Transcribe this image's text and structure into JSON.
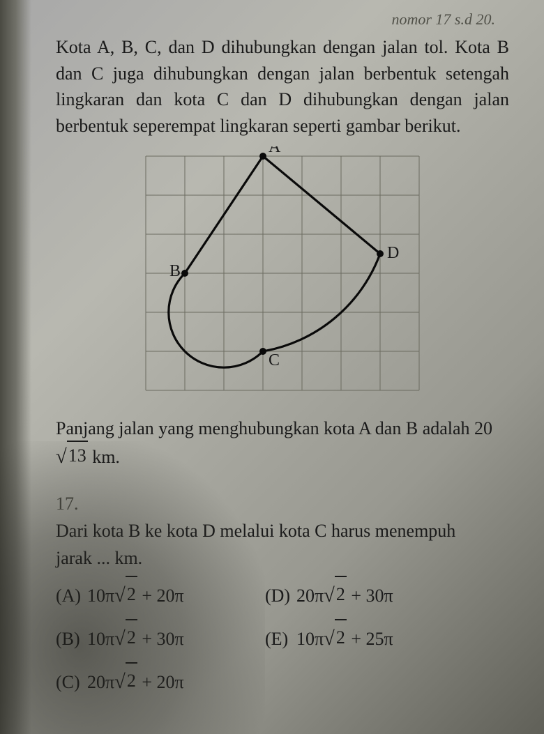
{
  "header": {
    "note": "nomor 17 s.d 20."
  },
  "problem": {
    "intro": "Kota A, B, C, dan D dihubungkan dengan jalan tol. Kota B dan C juga dihubungkan dengan jalan berbentuk setengah lingkaran dan kota C dan D dihubungkan dengan jalan berbentuk seperempat lingkaran seperti gambar berikut.",
    "given_prefix": "Panjang jalan yang menghubungkan kota A dan B adalah 20",
    "given_sqrt": "13",
    "given_suffix": " km."
  },
  "figure": {
    "labels": {
      "A": "A",
      "B": "B",
      "C": "C",
      "D": "D"
    },
    "grid": {
      "cols": 7,
      "rows": 6,
      "cell_size": 56,
      "stroke": "#6b6b60",
      "stroke_width": 1
    },
    "points": {
      "A": [
        3,
        0
      ],
      "B": [
        1,
        3
      ],
      "C": [
        3,
        5
      ],
      "D": [
        6,
        2.5
      ]
    },
    "line_color": "#0a0a0a",
    "line_width": 3.2,
    "point_radius": 5,
    "label_fontsize": 24
  },
  "question": {
    "number": "17.",
    "text": "Dari kota B ke kota D melalui kota C harus menempuh jarak ... km.",
    "options": [
      {
        "label": "(A)",
        "coef1": "10π",
        "sqrt": "2",
        "rest": " + 20π"
      },
      {
        "label": "(B)",
        "coef1": "10π",
        "sqrt": "2",
        "rest": " + 30π"
      },
      {
        "label": "(C)",
        "coef1": "20π",
        "sqrt": "2",
        "rest": " + 20π"
      },
      {
        "label": "(D)",
        "coef1": "20π",
        "sqrt": "2",
        "rest": " + 30π"
      },
      {
        "label": "(E)",
        "coef1": "10π",
        "sqrt": "2",
        "rest": " + 25π"
      }
    ]
  }
}
